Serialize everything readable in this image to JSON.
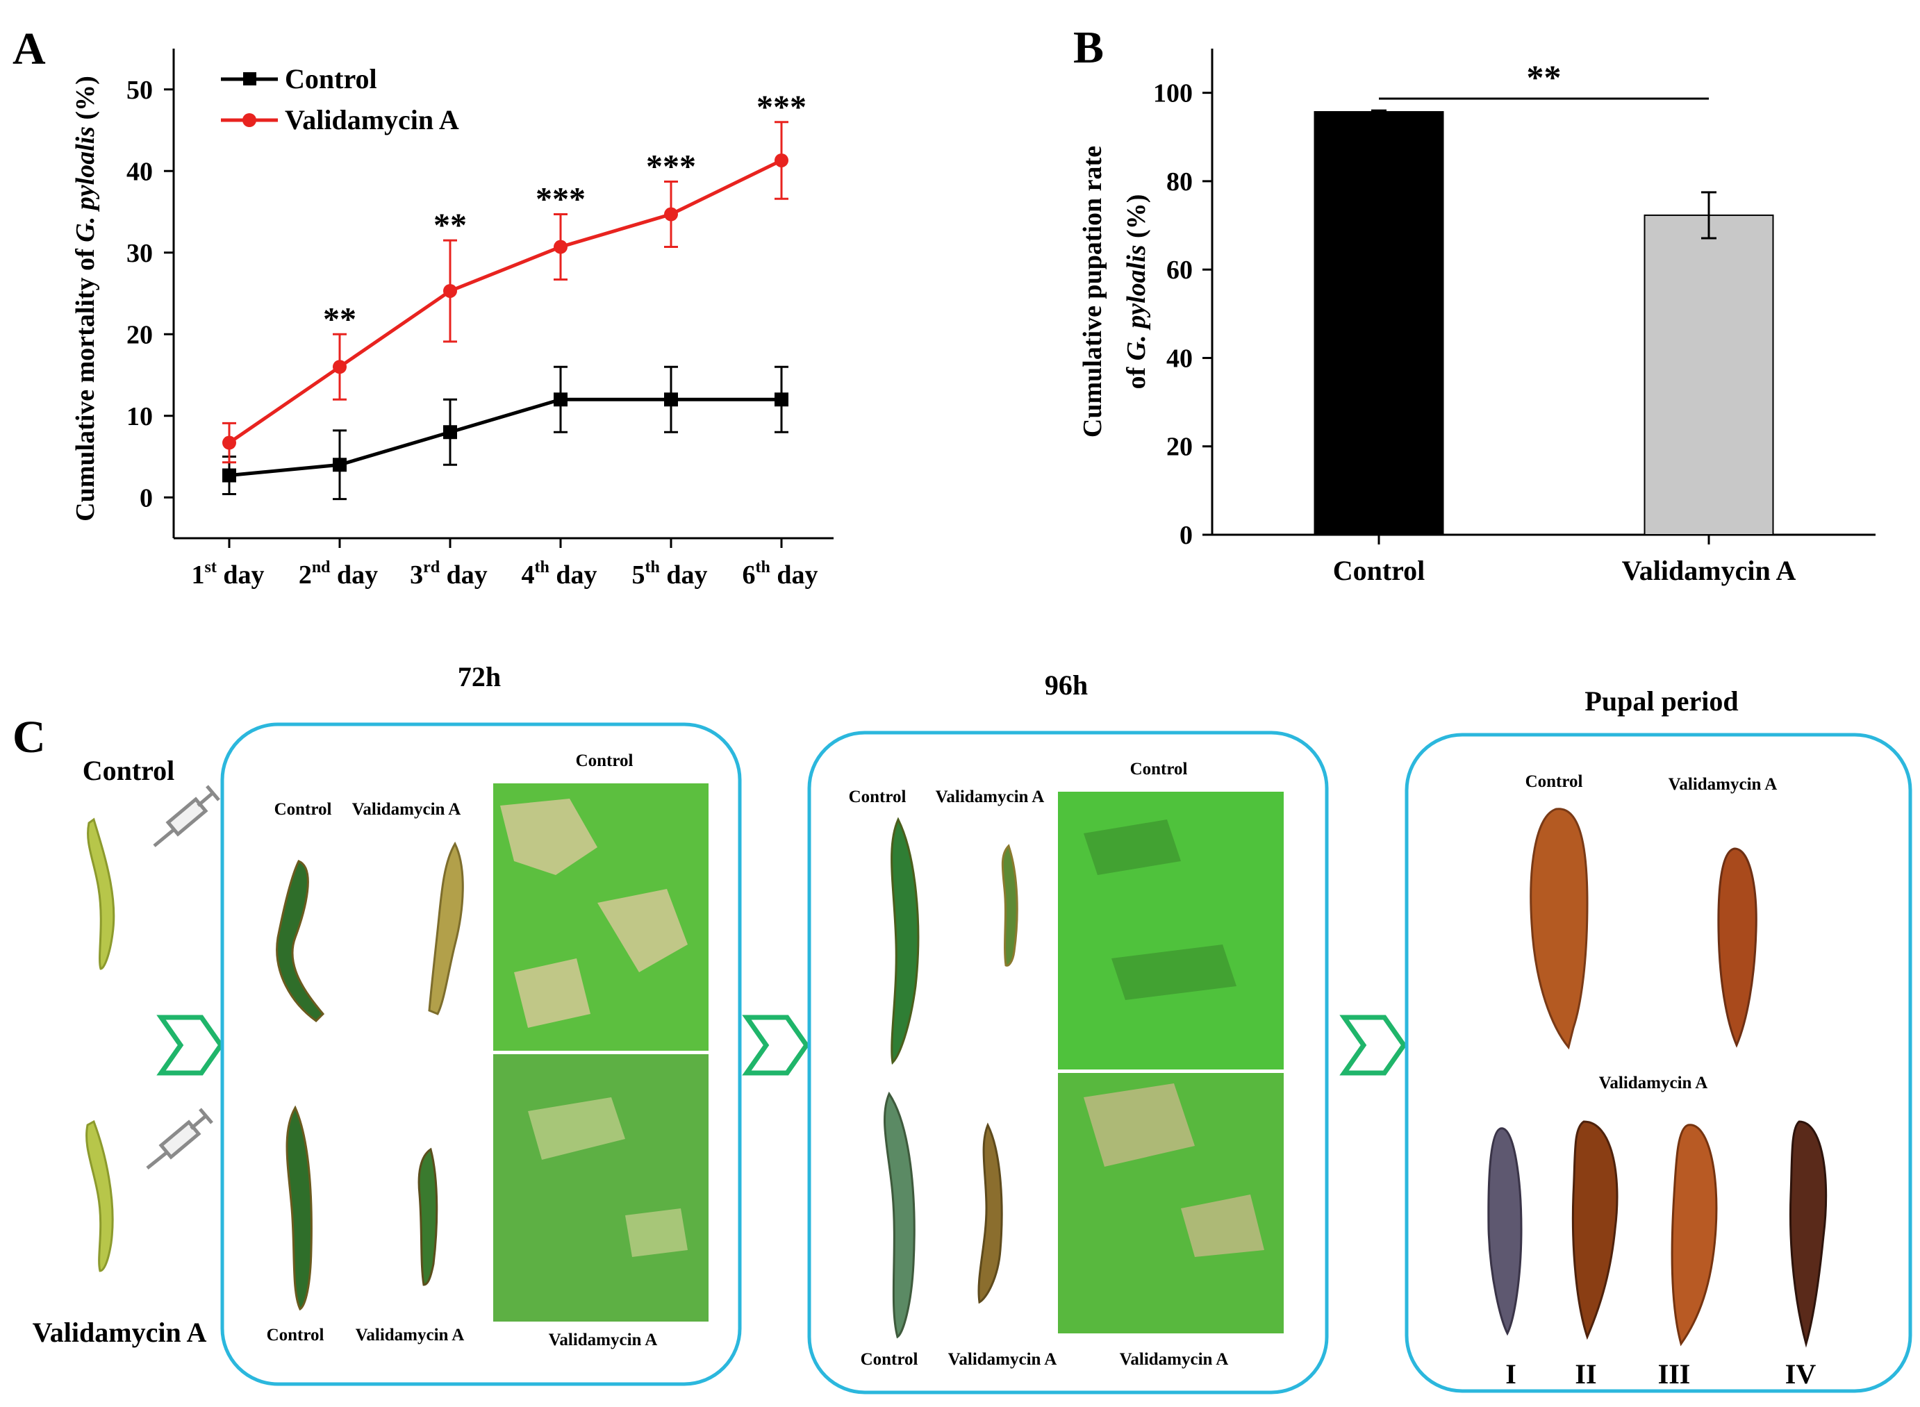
{
  "panels": {
    "a": "A",
    "b": "B",
    "c": "C"
  },
  "chart_data": [
    {
      "type": "line",
      "panel": "A",
      "ylabel_prefix": "Cumulative mortality of ",
      "ylabel_italic": "G. pyloalis",
      "ylabel_suffix": " (%)",
      "ylim": [
        -5,
        55
      ],
      "yticks": [
        "0",
        "10",
        "20",
        "30",
        "40",
        "50"
      ],
      "ytick_values": [
        0,
        10,
        20,
        30,
        40,
        50
      ],
      "categories": [
        {
          "num": "1",
          "sup": "st",
          "word": " day"
        },
        {
          "num": "2",
          "sup": "nd",
          "word": " day"
        },
        {
          "num": "3",
          "sup": "rd",
          "word": " day"
        },
        {
          "num": "4",
          "sup": "th",
          "word": " day"
        },
        {
          "num": "5",
          "sup": "th",
          "word": " day"
        },
        {
          "num": "6",
          "sup": "th",
          "word": " day"
        }
      ],
      "series": [
        {
          "name": "Control",
          "color": "#000000",
          "values": [
            2.7,
            4,
            8,
            12,
            12,
            12
          ],
          "errors": [
            2.3,
            4.2,
            4,
            4,
            4,
            4
          ]
        },
        {
          "name": "Validamycin A",
          "color": "#e8231f",
          "values": [
            6.7,
            16,
            25.3,
            30.7,
            34.7,
            41.3
          ],
          "errors": [
            2.4,
            4,
            6.2,
            4,
            4,
            4.7
          ]
        }
      ],
      "significance": [
        "",
        "**",
        "**",
        "***",
        "***",
        "***"
      ]
    },
    {
      "type": "bar",
      "panel": "B",
      "ylabel_line1": "Cumulative pupation rate",
      "ylabel_prefix": "of ",
      "ylabel_italic": "G. pyloalis",
      "ylabel_suffix": " (%)",
      "ylim": [
        0,
        110
      ],
      "yticks": [
        "0",
        "20",
        "40",
        "60",
        "80",
        "100"
      ],
      "ytick_values": [
        0,
        20,
        40,
        60,
        80,
        100
      ],
      "categories": [
        "Control",
        "Validamycin A"
      ],
      "values": [
        95.7,
        72.3
      ],
      "errors": [
        0.3,
        5.2
      ],
      "colors": [
        "#000000",
        "#c8c8c8"
      ],
      "significance": "**"
    }
  ],
  "panel_c": {
    "left_control": "Control",
    "left_treatment": "Validamycin A",
    "box1": {
      "title": "72h",
      "larvae_top_left": "Control",
      "larvae_top_right": "Validamycin A",
      "larvae_bottom_left": "Control",
      "larvae_bottom_right": "Validamycin A",
      "leaf_top_label": "Control",
      "leaf_bottom_label": "Validamycin A"
    },
    "box2": {
      "title": "96h",
      "larvae_top_left": "Control",
      "larvae_top_right": "Validamycin A",
      "larvae_bottom_left": "Control",
      "larvae_bottom_right": "Validamycin A",
      "leaf_top_label": "Control",
      "leaf_bottom_label": "Validamycin A"
    },
    "box3": {
      "title": "Pupal period",
      "pupa_top_left": "Control",
      "pupa_top_right": "Validamycin A",
      "pupa_bottom_label": "Validamycin A",
      "roman": [
        "I",
        "II",
        "III",
        "IV"
      ]
    }
  },
  "colors": {
    "box_border": "#2bb7dd",
    "arrow": "#1fb56a",
    "leaf": "#4fc23c"
  }
}
